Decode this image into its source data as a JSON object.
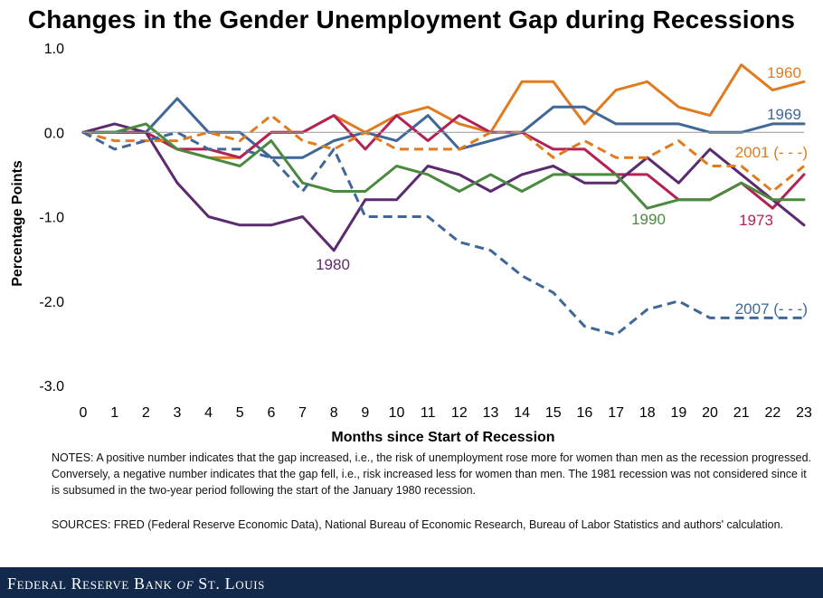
{
  "chart_data": {
    "type": "line",
    "title": "Changes in the Gender Unemployment Gap during Recessions",
    "xlabel": "Months since Start of Recession",
    "ylabel": "Percentage Points",
    "xlim": [
      0,
      23
    ],
    "ylim": [
      -3.0,
      1.0
    ],
    "x_ticks": [
      "0",
      "1",
      "2",
      "3",
      "4",
      "5",
      "6",
      "7",
      "8",
      "9",
      "10",
      "11",
      "12",
      "13",
      "14",
      "15",
      "16",
      "17",
      "18",
      "19",
      "20",
      "21",
      "22",
      "23"
    ],
    "y_ticks": [
      "1.0",
      "0.0",
      "-1.0",
      "-2.0",
      "-3.0"
    ],
    "grid": false,
    "x": [
      0,
      1,
      2,
      3,
      4,
      5,
      6,
      7,
      8,
      9,
      10,
      11,
      12,
      13,
      14,
      15,
      16,
      17,
      18,
      19,
      20,
      21,
      22,
      23
    ],
    "series": [
      {
        "name": "1960",
        "label": "1960",
        "color": "#e07b1f",
        "dashed": false,
        "values": [
          0,
          0,
          0,
          -0.2,
          -0.3,
          -0.3,
          0,
          0,
          0.2,
          0,
          0.2,
          0.3,
          0.1,
          0,
          0.6,
          0.6,
          0.1,
          0.5,
          0.6,
          0.3,
          0.2,
          0.8,
          0.5,
          0.6
        ]
      },
      {
        "name": "1969",
        "label": "1969",
        "color": "#3f6797",
        "dashed": false,
        "values": [
          0,
          0,
          0,
          0.4,
          0,
          0,
          -0.3,
          -0.3,
          -0.1,
          0,
          -0.1,
          0.2,
          -0.2,
          -0.1,
          0,
          0.3,
          0.3,
          0.1,
          0.1,
          0.1,
          0,
          0,
          0.1,
          0.1
        ]
      },
      {
        "name": "1973",
        "label": "1973",
        "color": "#b22255",
        "dashed": false,
        "values": [
          0,
          0,
          0,
          -0.2,
          -0.2,
          -0.3,
          0,
          0,
          0.2,
          -0.2,
          0.2,
          -0.1,
          0.2,
          0,
          0,
          -0.2,
          -0.2,
          -0.5,
          -0.5,
          -0.8,
          -0.8,
          -0.6,
          -0.9,
          -0.5
        ]
      },
      {
        "name": "1980",
        "label": "1980",
        "color": "#5c2a6e",
        "dashed": false,
        "values": [
          0,
          0.1,
          0,
          -0.6,
          -1.0,
          -1.1,
          -1.1,
          -1.0,
          -1.4,
          -0.8,
          -0.8,
          -0.4,
          -0.5,
          -0.7,
          -0.5,
          -0.4,
          -0.6,
          -0.6,
          -0.3,
          -0.6,
          -0.2,
          -0.5,
          -0.8,
          -1.1
        ]
      },
      {
        "name": "1990",
        "label": "1990",
        "color": "#4a8a3e",
        "dashed": false,
        "values": [
          0,
          0,
          0.1,
          -0.2,
          -0.3,
          -0.4,
          -0.1,
          -0.6,
          -0.7,
          -0.7,
          -0.4,
          -0.5,
          -0.7,
          -0.5,
          -0.7,
          -0.5,
          -0.5,
          -0.5,
          -0.9,
          -0.8,
          -0.8,
          -0.6,
          -0.8,
          -0.8
        ]
      },
      {
        "name": "2001",
        "label": "2001 (- - -)",
        "color": "#e07b1f",
        "dashed": true,
        "values": [
          0,
          -0.1,
          -0.1,
          -0.1,
          0,
          -0.1,
          0.2,
          -0.1,
          -0.2,
          0,
          -0.2,
          -0.2,
          -0.2,
          0,
          0,
          -0.3,
          -0.1,
          -0.3,
          -0.3,
          -0.1,
          -0.4,
          -0.4,
          -0.7,
          -0.4
        ]
      },
      {
        "name": "2007",
        "label": "2007 (- - -)",
        "color": "#3f6797",
        "dashed": true,
        "values": [
          0,
          -0.2,
          -0.1,
          0,
          -0.2,
          -0.2,
          -0.3,
          -0.7,
          -0.2,
          -1.0,
          -1.0,
          -1.0,
          -1.3,
          -1.4,
          -1.7,
          -1.9,
          -2.3,
          -2.4,
          -2.1,
          -2.0,
          -2.2,
          -2.2,
          -2.2,
          -2.2
        ]
      }
    ],
    "annotations": [
      {
        "text": "1960",
        "series": "1960",
        "color": "#e07b1f"
      },
      {
        "text": "1969",
        "series": "1969",
        "color": "#3f6797"
      },
      {
        "text": "2001 (- - -)",
        "series": "2001",
        "color": "#e07b1f"
      },
      {
        "text": "1990",
        "series": "1990",
        "color": "#4a8a3e"
      },
      {
        "text": "1973",
        "series": "1973",
        "color": "#b22255"
      },
      {
        "text": "1980",
        "series": "1980",
        "color": "#5c2a6e"
      },
      {
        "text": "2007 (- - -)",
        "series": "2007",
        "color": "#3f6797"
      }
    ]
  },
  "notes": "NOTES: A positive number indicates that the gap increased, i.e., the risk of unemployment rose more for women than men as the recession progressed. Conversely, a negative number indicates that the gap fell, i.e., risk increased less for women than men. The 1981 recession was not considered since it is subsumed in the two-year period following the start of the January 1980 recession.",
  "sources": "SOURCES: FRED (Federal Reserve Economic Data), National Bureau of Economic Research, Bureau of Labor Statistics and authors' calculation.",
  "footer": {
    "brand_pre": "Federal Reserve Bank ",
    "brand_of": "of",
    "brand_post": " St. Louis"
  }
}
